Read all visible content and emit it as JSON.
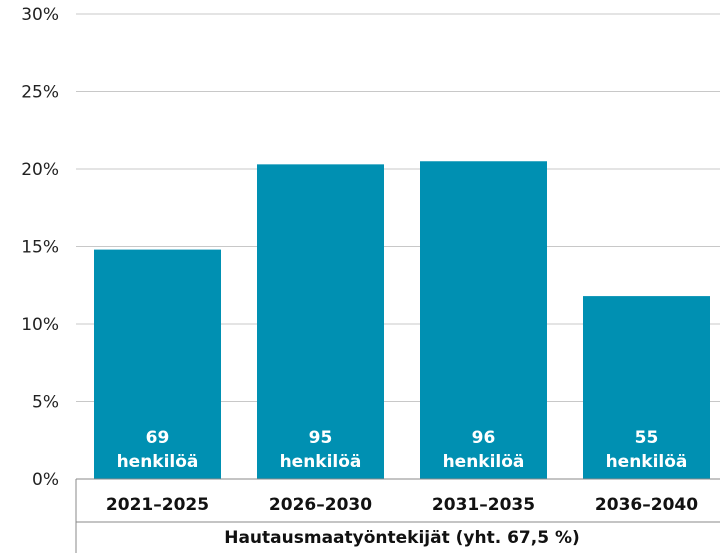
{
  "chart_data": {
    "type": "bar",
    "categories": [
      "2021–2025",
      "2026–2030",
      "2031–2035",
      "2036–2040"
    ],
    "values": [
      14.8,
      20.3,
      20.5,
      11.8
    ],
    "bar_labels": [
      {
        "count": "69",
        "unit": "henkilöä"
      },
      {
        "count": "95",
        "unit": "henkilöä"
      },
      {
        "count": "96",
        "unit": "henkilöä"
      },
      {
        "count": "55",
        "unit": "henkilöä"
      }
    ],
    "y_ticks": [
      "0%",
      "5%",
      "10%",
      "15%",
      "20%",
      "25%",
      "30%"
    ],
    "ylim": [
      0,
      30
    ],
    "group_label": "Hautausmaatyöntekijät (yht. 67,5 %)",
    "grid": true,
    "bar_color": "#0090B2",
    "grid_color": "#c8c8c8",
    "title": "",
    "xlabel": "",
    "ylabel": ""
  }
}
